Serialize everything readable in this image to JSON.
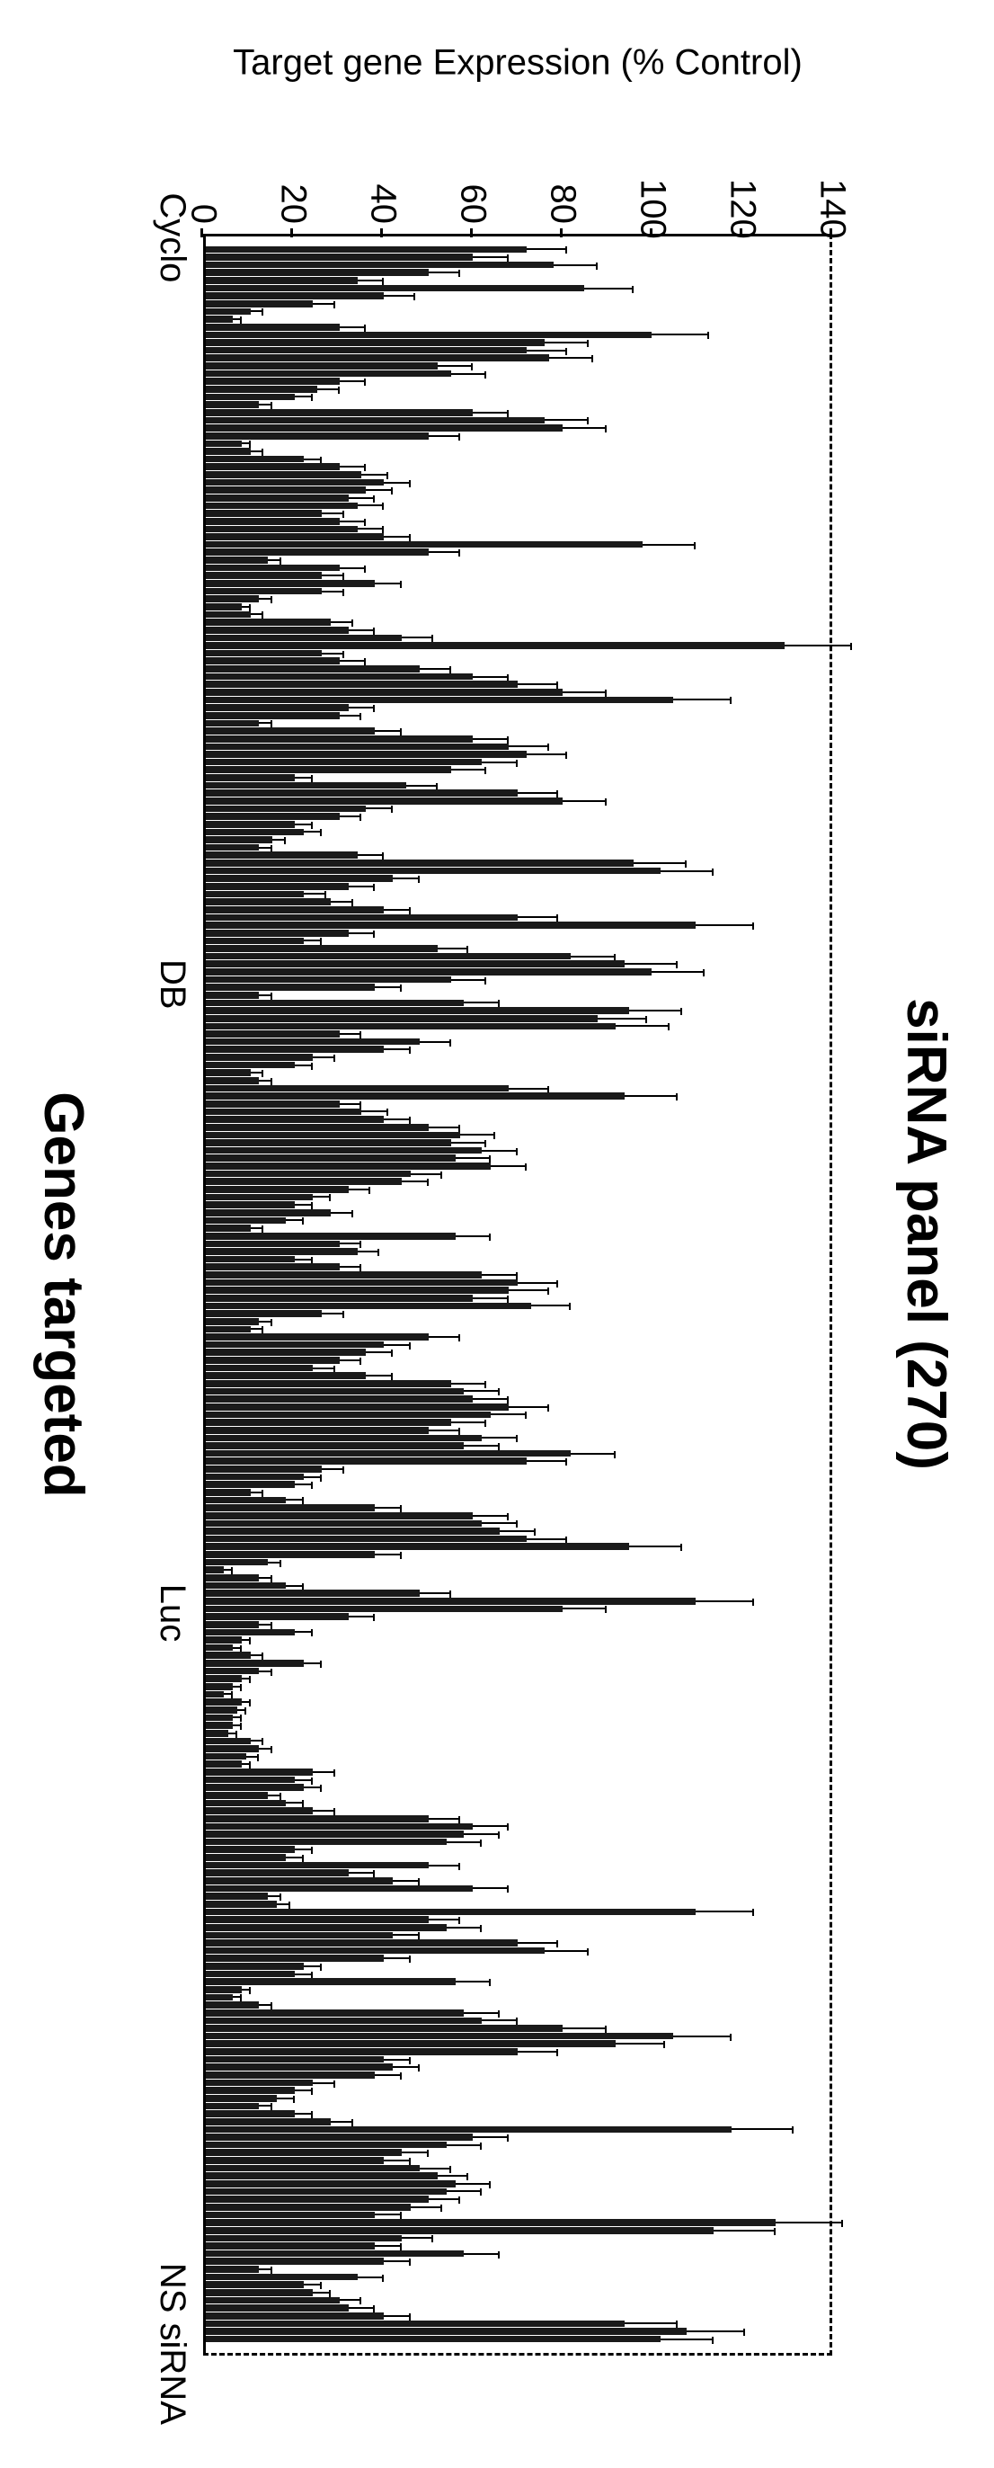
{
  "chart": {
    "type": "bar",
    "title": "siRNA panel (270)",
    "title_fontsize": 62,
    "xlabel": "Genes targeted",
    "ylabel": "Target gene Expression (% Control)",
    "label_fontsize": 40,
    "ylim": [
      0,
      140
    ],
    "yticks": [
      0,
      20,
      40,
      60,
      80,
      100,
      120,
      140
    ],
    "bar_color": "#1a1a1a",
    "error_bar_color": "#000000",
    "background_color": "#ffffff",
    "border_solid_color": "#000000",
    "border_dash_color": "#000000",
    "xtick_labels": [
      {
        "index": 0,
        "label": "Cyclo"
      },
      {
        "index": 95,
        "label": "DB"
      },
      {
        "index": 175,
        "label": "Luc"
      },
      {
        "index": 268,
        "label": "NS siRNA"
      }
    ],
    "values": [
      72,
      60,
      78,
      50,
      34,
      85,
      40,
      24,
      10,
      6,
      30,
      100,
      76,
      72,
      77,
      52,
      55,
      30,
      25,
      20,
      12,
      60,
      76,
      80,
      50,
      8,
      10,
      22,
      30,
      35,
      40,
      36,
      32,
      34,
      26,
      30,
      34,
      40,
      98,
      50,
      14,
      30,
      26,
      38,
      26,
      12,
      8,
      10,
      28,
      32,
      44,
      130,
      26,
      30,
      48,
      60,
      70,
      80,
      105,
      32,
      30,
      12,
      38,
      60,
      68,
      72,
      62,
      55,
      20,
      45,
      70,
      80,
      36,
      30,
      20,
      22,
      15,
      12,
      34,
      96,
      102,
      42,
      32,
      22,
      28,
      40,
      70,
      110,
      32,
      22,
      52,
      82,
      94,
      100,
      55,
      38,
      12,
      58,
      95,
      88,
      92,
      30,
      48,
      40,
      24,
      20,
      10,
      12,
      68,
      94,
      30,
      35,
      40,
      50,
      57,
      55,
      62,
      56,
      64,
      46,
      44,
      32,
      24,
      20,
      28,
      18,
      10,
      56,
      30,
      34,
      20,
      30,
      62,
      70,
      68,
      60,
      73,
      26,
      12,
      10,
      50,
      40,
      36,
      30,
      24,
      36,
      55,
      58,
      60,
      68,
      64,
      55,
      50,
      62,
      58,
      82,
      72,
      26,
      22,
      20,
      10,
      18,
      38,
      60,
      62,
      66,
      72,
      95,
      38,
      14,
      4,
      12,
      18,
      48,
      110,
      80,
      32,
      12,
      20,
      8,
      6,
      10,
      22,
      12,
      8,
      6,
      4,
      8,
      7,
      6,
      6,
      5,
      10,
      12,
      9,
      8,
      24,
      20,
      22,
      14,
      18,
      24,
      50,
      60,
      58,
      54,
      20,
      18,
      50,
      32,
      42,
      60,
      14,
      16,
      110,
      50,
      54,
      42,
      70,
      76,
      40,
      22,
      20,
      56,
      8,
      6,
      12,
      58,
      62,
      80,
      105,
      92,
      70,
      40,
      42,
      38,
      24,
      20,
      16,
      12,
      20,
      28,
      118,
      60,
      54,
      44,
      40,
      48,
      52,
      56,
      54,
      50,
      46,
      38,
      128,
      114,
      44,
      38,
      58,
      40,
      12,
      34,
      22,
      24,
      30,
      32,
      40,
      94,
      108,
      102
    ],
    "errors": [
      9,
      8,
      10,
      7,
      6,
      11,
      7,
      5,
      3,
      2,
      6,
      13,
      10,
      9,
      10,
      8,
      8,
      6,
      5,
      4,
      3,
      8,
      10,
      10,
      7,
      2,
      3,
      4,
      6,
      6,
      6,
      6,
      6,
      6,
      5,
      6,
      6,
      6,
      12,
      7,
      3,
      6,
      5,
      6,
      5,
      3,
      2,
      3,
      5,
      6,
      7,
      15,
      5,
      6,
      7,
      8,
      9,
      10,
      13,
      6,
      5,
      3,
      6,
      8,
      9,
      9,
      8,
      8,
      4,
      7,
      9,
      10,
      6,
      5,
      4,
      4,
      3,
      3,
      6,
      12,
      12,
      6,
      6,
      5,
      5,
      6,
      9,
      13,
      6,
      4,
      7,
      10,
      12,
      12,
      8,
      6,
      3,
      8,
      12,
      11,
      12,
      5,
      7,
      6,
      5,
      4,
      3,
      3,
      9,
      12,
      5,
      6,
      6,
      7,
      8,
      8,
      8,
      8,
      8,
      7,
      6,
      5,
      4,
      4,
      5,
      4,
      3,
      8,
      5,
      5,
      4,
      5,
      8,
      9,
      9,
      8,
      9,
      5,
      3,
      3,
      7,
      6,
      6,
      5,
      5,
      6,
      8,
      8,
      8,
      9,
      8,
      8,
      7,
      8,
      8,
      10,
      9,
      5,
      4,
      4,
      3,
      4,
      6,
      8,
      8,
      8,
      9,
      12,
      6,
      3,
      2,
      3,
      4,
      7,
      13,
      10,
      6,
      3,
      4,
      2,
      2,
      3,
      4,
      3,
      2,
      2,
      2,
      2,
      2,
      2,
      2,
      2,
      3,
      3,
      3,
      2,
      5,
      4,
      4,
      3,
      4,
      5,
      7,
      8,
      8,
      8,
      4,
      4,
      7,
      6,
      6,
      8,
      3,
      3,
      13,
      7,
      8,
      6,
      9,
      10,
      6,
      4,
      4,
      8,
      2,
      2,
      3,
      8,
      8,
      10,
      13,
      11,
      9,
      6,
      6,
      6,
      5,
      4,
      4,
      3,
      4,
      5,
      14,
      8,
      8,
      6,
      6,
      7,
      7,
      8,
      8,
      7,
      7,
      6,
      15,
      14,
      7,
      6,
      8,
      6,
      3,
      6,
      4,
      4,
      5,
      6,
      6,
      12,
      13,
      12
    ]
  }
}
